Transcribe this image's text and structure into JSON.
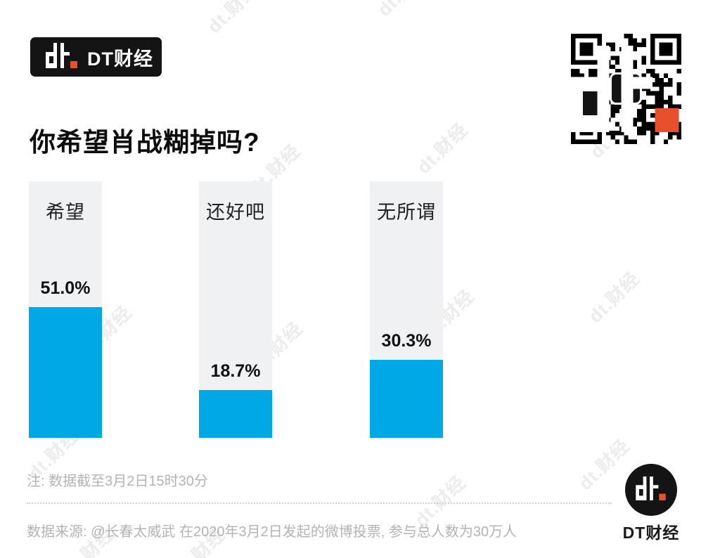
{
  "brand": {
    "name_glyph": "dt.",
    "name_text": "DT财经",
    "colors": {
      "black": "#141414",
      "red": "#e8502d",
      "blue": "#00a8e6"
    }
  },
  "title": "你希望肖战糊掉吗?",
  "chart_data": {
    "type": "bar",
    "title": "你希望肖战糊掉吗?",
    "categories": [
      "希望",
      "还好吧",
      "无所谓"
    ],
    "values": [
      51.0,
      18.7,
      30.3
    ],
    "value_labels": [
      "51.0%",
      "18.7%",
      "30.3%"
    ],
    "ylim": [
      0,
      100
    ],
    "orientation": "vertical",
    "bar_color": "#00a8e6",
    "track_color": "#f0f1f3",
    "grid": false,
    "legend": false
  },
  "footer": {
    "note": "注: 数据截至3月2日15时30分",
    "source": "数据来源: @长春太威武 在2020年3月2日发起的微博投票, 参与总人数为30万人",
    "brand_text": "DT财经"
  },
  "watermark": {
    "text": "dt.财经",
    "color": "#ececec"
  }
}
